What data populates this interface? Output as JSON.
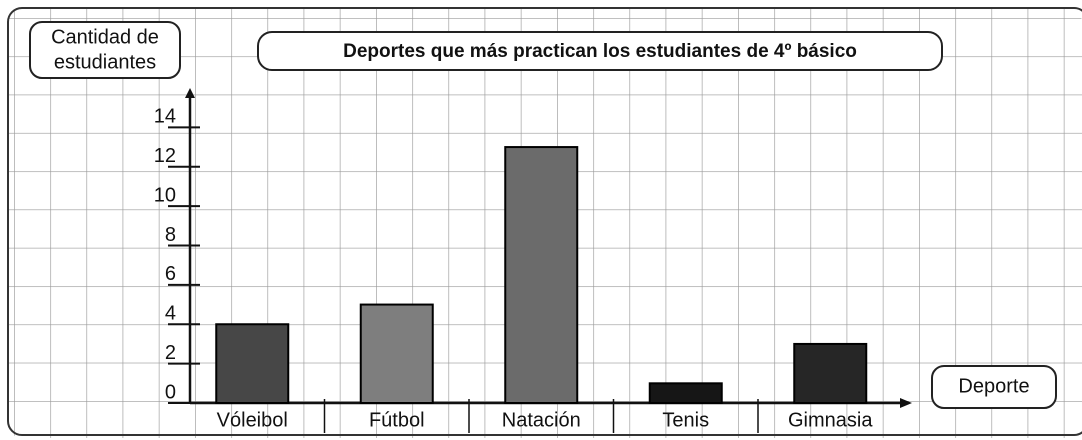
{
  "chart_data": {
    "type": "bar",
    "title": "Deportes que más practican los estudiantes de 4º básico",
    "y_label": [
      "Cantidad de",
      "estudiantes"
    ],
    "x_label": "Deporte",
    "categories": [
      "Vóleibol",
      "Fútbol",
      "Natación",
      "Tenis",
      "Gimnasia"
    ],
    "values": [
      4,
      5,
      13,
      1,
      3
    ],
    "colors": [
      "#474747",
      "#7e7e7e",
      "#6b6b6b",
      "#161616",
      "#262626"
    ],
    "ylim": [
      0,
      16
    ],
    "yticks": [
      0,
      2,
      4,
      6,
      8,
      10,
      12,
      14
    ]
  }
}
